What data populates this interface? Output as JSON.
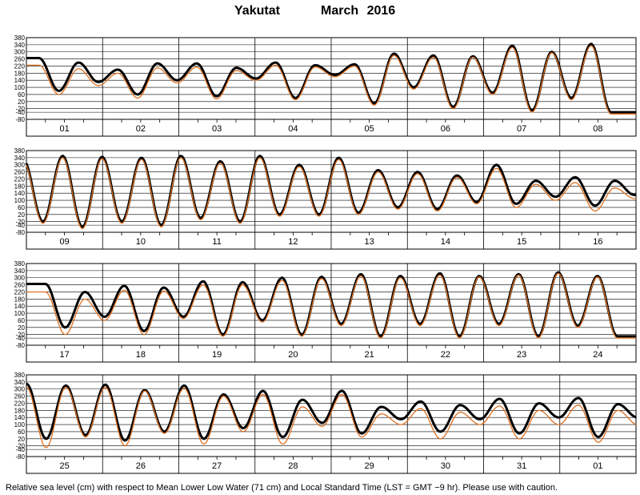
{
  "title": {
    "station": "Yakutat",
    "period": "March   2016"
  },
  "footnote": "Relative sea level (cm) with respect to Mean Lower Low Water (71 cm) and Local Standard Time (LST = GMT −9 hr). Please use with caution.",
  "colors": {
    "predicted": "#000000",
    "observed": "#e07020",
    "grid": "#000000"
  },
  "chart_data": {
    "type": "line",
    "ylim": [
      -80,
      380
    ],
    "yticks": [
      380,
      340,
      300,
      260,
      220,
      180,
      140,
      100,
      60,
      20,
      -20,
      -40,
      -80
    ],
    "ytick_labels": [
      "380",
      "340",
      "300",
      "260",
      "220",
      "180",
      "140",
      "100",
      "60",
      "20",
      "-20",
      "-40",
      "-80"
    ],
    "grid": true,
    "panels": [
      {
        "day_labels": [
          "01",
          "02",
          "03",
          "04",
          "05",
          "06",
          "07",
          "08"
        ],
        "series": [
          {
            "role": "predicted",
            "highs": [
              265,
              240,
              200,
              235,
              235,
              210,
              240,
              225,
              230,
              290,
              280,
              275,
              335,
              300,
              345
            ],
            "lows": [
              80,
              130,
              60,
              140,
              50,
              150,
              40,
              170,
              10,
              100,
              -10,
              70,
              -30,
              40,
              -40
            ]
          },
          {
            "role": "observed",
            "highs": [
              225,
              205,
              180,
              210,
              215,
              195,
              225,
              215,
              220,
              280,
              270,
              270,
              325,
              295,
              335
            ],
            "lows": [
              60,
              110,
              40,
              125,
              35,
              140,
              30,
              160,
              0,
              90,
              -20,
              60,
              -40,
              30,
              -50
            ]
          }
        ]
      },
      {
        "day_labels": [
          "09",
          "10",
          "11",
          "12",
          "13",
          "14",
          "15",
          "16"
        ],
        "series": [
          {
            "role": "predicted",
            "highs": [
              330,
              350,
              345,
              340,
              350,
              320,
              350,
              300,
              340,
              270,
              260,
              240,
              300,
              210,
              230,
              210
            ],
            "lows": [
              -20,
              -50,
              -20,
              -40,
              0,
              -20,
              20,
              20,
              30,
              60,
              50,
              90,
              80,
              120,
              70,
              130
            ]
          },
          {
            "role": "observed",
            "highs": [
              320,
              340,
              335,
              330,
              340,
              310,
              340,
              290,
              330,
              260,
              250,
              230,
              280,
              190,
              200,
              170
            ],
            "lows": [
              -30,
              -60,
              -30,
              -50,
              -10,
              -30,
              10,
              10,
              20,
              50,
              40,
              80,
              60,
              100,
              40,
              110
            ]
          }
        ]
      },
      {
        "day_labels": [
          "17",
          "18",
          "19",
          "20",
          "21",
          "22",
          "23",
          "24"
        ],
        "series": [
          {
            "role": "predicted",
            "highs": [
              265,
              220,
              255,
              245,
              280,
              275,
              300,
              305,
              320,
              310,
              325,
              310,
              320,
              330,
              310
            ],
            "lows": [
              20,
              80,
              0,
              80,
              -20,
              60,
              -20,
              40,
              -30,
              40,
              -30,
              40,
              -30,
              30,
              -30
            ]
          },
          {
            "role": "observed",
            "highs": [
              220,
              180,
              230,
              225,
              260,
              260,
              285,
              295,
              310,
              300,
              315,
              305,
              315,
              325,
              305
            ],
            "lows": [
              -20,
              60,
              -20,
              70,
              -30,
              50,
              -30,
              30,
              -40,
              30,
              -40,
              30,
              -40,
              20,
              -40
            ]
          }
        ]
      },
      {
        "day_labels": [
          "25",
          "26",
          "27",
          "28",
          "29",
          "30",
          "31",
          "01"
        ],
        "series": [
          {
            "role": "predicted",
            "highs": [
              330,
              320,
              325,
              295,
              320,
              270,
              290,
              240,
              290,
              200,
              230,
              210,
              245,
              220,
              250,
              215
            ],
            "lows": [
              20,
              40,
              10,
              60,
              20,
              80,
              30,
              110,
              50,
              130,
              60,
              130,
              50,
              140,
              30,
              140
            ]
          },
          {
            "role": "observed",
            "highs": [
              310,
              310,
              310,
              290,
              305,
              260,
              270,
              200,
              270,
              160,
              190,
              170,
              205,
              180,
              210,
              180
            ],
            "lows": [
              -30,
              30,
              -20,
              50,
              -10,
              60,
              -10,
              90,
              30,
              100,
              20,
              100,
              20,
              100,
              0,
              100
            ]
          }
        ]
      }
    ]
  }
}
